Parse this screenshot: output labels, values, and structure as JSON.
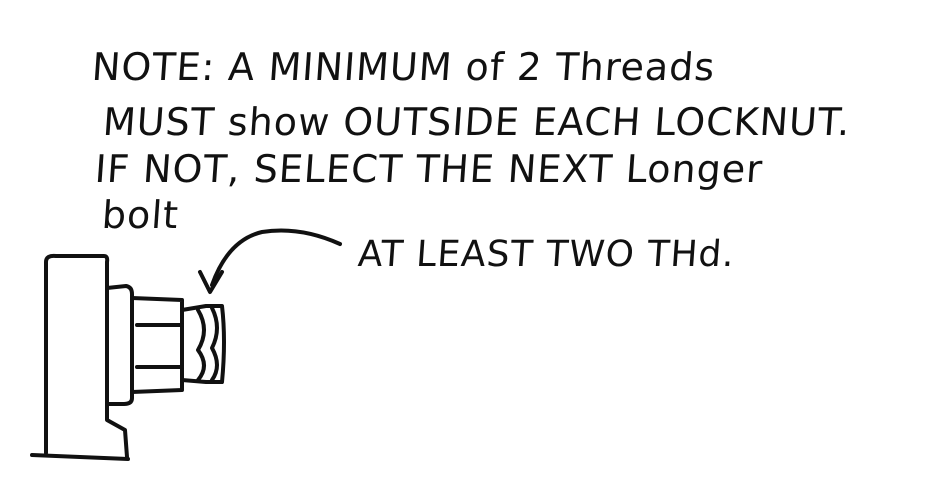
{
  "note": {
    "lines": [
      "NOTE: A MINIMUM of 2 Threads",
      "MUST show OUTSIDE EACH LOCKNUT.",
      "IF NOT, SELECT THE NEXT Longer",
      "bolt"
    ]
  },
  "callout": {
    "label": "AT LEAST TWO THd."
  },
  "ink_color": "#111111"
}
